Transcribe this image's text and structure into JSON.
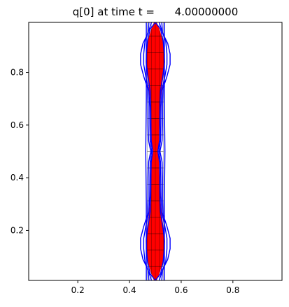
{
  "chart_data": {
    "type": "line",
    "title": "q[0] at time t =      4.00000000",
    "xlabel": "",
    "ylabel": "",
    "xlim": [
      0.01,
      0.99
    ],
    "ylim": [
      0.01,
      0.99
    ],
    "xticks": [
      0.2,
      0.4,
      0.6,
      0.8
    ],
    "xtick_labels": [
      "0.2",
      "0.4",
      "0.6",
      "0.8"
    ],
    "yticks": [
      0.2,
      0.4,
      0.6,
      0.8
    ],
    "ytick_labels": [
      "0.2",
      "0.4",
      "0.6",
      "0.8"
    ],
    "grid": false,
    "colors": {
      "fill": "#ff0000",
      "contour": "#0000ff",
      "mesh": "#000000",
      "axes": "#000000"
    },
    "filled_region": {
      "name": "",
      "center_x": 0.5,
      "profile": [
        {
          "y": 0.01,
          "half_width": 0.004
        },
        {
          "y": 0.04,
          "half_width": 0.016
        },
        {
          "y": 0.08,
          "half_width": 0.028
        },
        {
          "y": 0.12,
          "half_width": 0.034
        },
        {
          "y": 0.16,
          "half_width": 0.036
        },
        {
          "y": 0.2,
          "half_width": 0.032
        },
        {
          "y": 0.25,
          "half_width": 0.025
        },
        {
          "y": 0.3,
          "half_width": 0.02
        },
        {
          "y": 0.35,
          "half_width": 0.018
        },
        {
          "y": 0.4,
          "half_width": 0.017
        },
        {
          "y": 0.45,
          "half_width": 0.015
        },
        {
          "y": 0.5,
          "half_width": 0.008
        },
        {
          "y": 0.55,
          "half_width": 0.015
        },
        {
          "y": 0.6,
          "half_width": 0.017
        },
        {
          "y": 0.65,
          "half_width": 0.018
        },
        {
          "y": 0.7,
          "half_width": 0.02
        },
        {
          "y": 0.75,
          "half_width": 0.025
        },
        {
          "y": 0.8,
          "half_width": 0.032
        },
        {
          "y": 0.84,
          "half_width": 0.036
        },
        {
          "y": 0.88,
          "half_width": 0.034
        },
        {
          "y": 0.92,
          "half_width": 0.028
        },
        {
          "y": 0.96,
          "half_width": 0.016
        },
        {
          "y": 0.99,
          "half_width": 0.004
        }
      ]
    },
    "contours": [
      {
        "name": "",
        "points": [
          [
            0.5,
            0.01
          ],
          [
            0.52,
            0.035
          ],
          [
            0.53,
            0.08
          ],
          [
            0.535,
            0.13
          ],
          [
            0.535,
            0.17
          ],
          [
            0.528,
            0.22
          ],
          [
            0.52,
            0.27
          ],
          [
            0.518,
            0.33
          ],
          [
            0.517,
            0.4
          ],
          [
            0.516,
            0.46
          ],
          [
            0.51,
            0.5
          ],
          [
            0.516,
            0.54
          ],
          [
            0.517,
            0.6
          ],
          [
            0.518,
            0.67
          ],
          [
            0.52,
            0.73
          ],
          [
            0.528,
            0.78
          ],
          [
            0.535,
            0.83
          ],
          [
            0.535,
            0.87
          ],
          [
            0.53,
            0.92
          ],
          [
            0.52,
            0.965
          ],
          [
            0.5,
            0.99
          ]
        ]
      },
      {
        "name": "",
        "points": [
          [
            0.5,
            0.01
          ],
          [
            0.48,
            0.035
          ],
          [
            0.47,
            0.08
          ],
          [
            0.465,
            0.13
          ],
          [
            0.465,
            0.17
          ],
          [
            0.472,
            0.22
          ],
          [
            0.48,
            0.27
          ],
          [
            0.482,
            0.33
          ],
          [
            0.483,
            0.4
          ],
          [
            0.484,
            0.46
          ],
          [
            0.49,
            0.5
          ],
          [
            0.484,
            0.54
          ],
          [
            0.483,
            0.6
          ],
          [
            0.482,
            0.67
          ],
          [
            0.48,
            0.73
          ],
          [
            0.472,
            0.78
          ],
          [
            0.465,
            0.83
          ],
          [
            0.465,
            0.87
          ],
          [
            0.47,
            0.92
          ],
          [
            0.48,
            0.965
          ],
          [
            0.5,
            0.99
          ]
        ]
      },
      {
        "name": "",
        "points": [
          [
            0.515,
            0.01
          ],
          [
            0.525,
            0.04
          ],
          [
            0.54,
            0.08
          ],
          [
            0.545,
            0.13
          ],
          [
            0.545,
            0.17
          ],
          [
            0.536,
            0.22
          ],
          [
            0.525,
            0.27
          ],
          [
            0.522,
            0.33
          ],
          [
            0.521,
            0.4
          ],
          [
            0.52,
            0.46
          ],
          [
            0.514,
            0.5
          ],
          [
            0.52,
            0.54
          ],
          [
            0.521,
            0.6
          ],
          [
            0.522,
            0.67
          ],
          [
            0.525,
            0.73
          ],
          [
            0.536,
            0.78
          ],
          [
            0.545,
            0.83
          ],
          [
            0.545,
            0.87
          ],
          [
            0.54,
            0.92
          ],
          [
            0.525,
            0.96
          ],
          [
            0.515,
            0.99
          ]
        ]
      },
      {
        "name": "",
        "points": [
          [
            0.485,
            0.01
          ],
          [
            0.475,
            0.04
          ],
          [
            0.46,
            0.08
          ],
          [
            0.455,
            0.13
          ],
          [
            0.455,
            0.17
          ],
          [
            0.464,
            0.22
          ],
          [
            0.475,
            0.27
          ],
          [
            0.478,
            0.33
          ],
          [
            0.479,
            0.4
          ],
          [
            0.48,
            0.46
          ],
          [
            0.486,
            0.5
          ],
          [
            0.48,
            0.54
          ],
          [
            0.479,
            0.6
          ],
          [
            0.478,
            0.67
          ],
          [
            0.475,
            0.73
          ],
          [
            0.464,
            0.78
          ],
          [
            0.455,
            0.83
          ],
          [
            0.455,
            0.87
          ],
          [
            0.46,
            0.92
          ],
          [
            0.475,
            0.96
          ],
          [
            0.485,
            0.99
          ]
        ]
      },
      {
        "name": "",
        "points": [
          [
            0.525,
            0.01
          ],
          [
            0.528,
            0.05
          ],
          [
            0.548,
            0.09
          ],
          [
            0.557,
            0.13
          ],
          [
            0.557,
            0.17
          ],
          [
            0.545,
            0.215
          ],
          [
            0.53,
            0.26
          ],
          [
            0.528,
            0.32
          ],
          [
            0.528,
            0.4
          ],
          [
            0.526,
            0.46
          ],
          [
            0.518,
            0.5
          ],
          [
            0.526,
            0.54
          ],
          [
            0.528,
            0.6
          ],
          [
            0.528,
            0.68
          ],
          [
            0.53,
            0.74
          ],
          [
            0.545,
            0.785
          ],
          [
            0.557,
            0.83
          ],
          [
            0.557,
            0.87
          ],
          [
            0.548,
            0.91
          ],
          [
            0.528,
            0.95
          ],
          [
            0.525,
            0.99
          ]
        ]
      },
      {
        "name": "",
        "points": [
          [
            0.475,
            0.01
          ],
          [
            0.472,
            0.05
          ],
          [
            0.452,
            0.09
          ],
          [
            0.443,
            0.13
          ],
          [
            0.443,
            0.17
          ],
          [
            0.455,
            0.215
          ],
          [
            0.47,
            0.26
          ],
          [
            0.472,
            0.32
          ],
          [
            0.472,
            0.4
          ],
          [
            0.474,
            0.46
          ],
          [
            0.482,
            0.5
          ],
          [
            0.474,
            0.54
          ],
          [
            0.472,
            0.6
          ],
          [
            0.472,
            0.68
          ],
          [
            0.47,
            0.74
          ],
          [
            0.455,
            0.785
          ],
          [
            0.443,
            0.83
          ],
          [
            0.443,
            0.87
          ],
          [
            0.452,
            0.91
          ],
          [
            0.472,
            0.95
          ],
          [
            0.475,
            0.99
          ]
        ]
      },
      {
        "name": "",
        "points": [
          [
            0.465,
            0.01
          ],
          [
            0.465,
            0.3
          ],
          [
            0.463,
            0.5
          ],
          [
            0.465,
            0.7
          ],
          [
            0.465,
            0.99
          ]
        ]
      },
      {
        "name": "",
        "points": [
          [
            0.535,
            0.01
          ],
          [
            0.535,
            0.3
          ],
          [
            0.537,
            0.5
          ],
          [
            0.535,
            0.7
          ],
          [
            0.535,
            0.99
          ]
        ]
      }
    ],
    "mesh_x": [
      0.4688,
      0.4844,
      0.5,
      0.5156,
      0.5313
    ],
    "mesh_y": [
      0.0625,
      0.125,
      0.1875,
      0.25,
      0.3125,
      0.375,
      0.4375,
      0.5,
      0.5625,
      0.625,
      0.6875,
      0.75,
      0.8125,
      0.875,
      0.9375
    ]
  }
}
